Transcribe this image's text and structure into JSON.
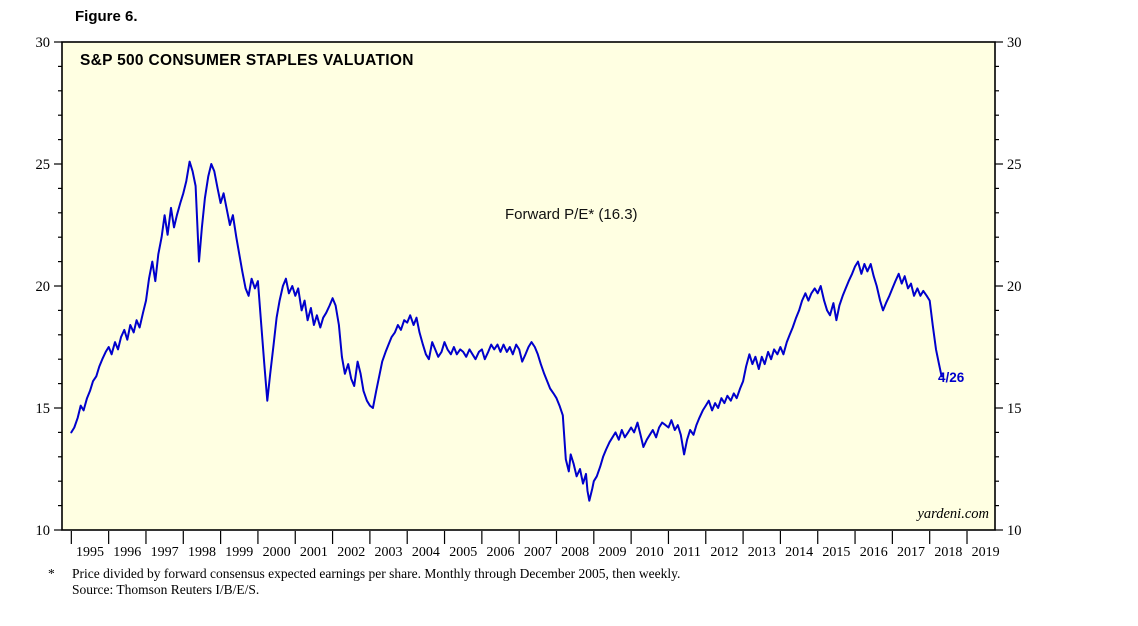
{
  "figure_label": "Figure 6.",
  "chart": {
    "title": "S&P 500 CONSUMER STAPLES VALUATION",
    "annotation": "Forward P/E* (16.3)",
    "end_label": "4/26",
    "watermark": "yardeni.com",
    "colors": {
      "line": "#0000CC",
      "plot_background": "#FFFFE2",
      "frame": "#000000",
      "end_label_blue": "#0000CC"
    }
  },
  "footnote": {
    "asterisk": "*",
    "line1": "Price divided by forward consensus expected earnings per share. Monthly through December 2005, then weekly.",
    "line2": "Source: Thomson Reuters I/B/E/S."
  },
  "chart_data": {
    "type": "line",
    "title": "S&P 500 CONSUMER STAPLES VALUATION",
    "series_name": "Forward P/E",
    "latest_value": 16.3,
    "latest_date_label": "4/26",
    "x_range": [
      1994.75,
      2019.75
    ],
    "y_range": [
      10,
      30
    ],
    "y_ticks": [
      10,
      15,
      20,
      25,
      30
    ],
    "y_minor_step": 1,
    "x_tick_years": [
      1995,
      1996,
      1997,
      1998,
      1999,
      2000,
      2001,
      2002,
      2003,
      2004,
      2005,
      2006,
      2007,
      2008,
      2009,
      2010,
      2011,
      2012,
      2013,
      2014,
      2015,
      2016,
      2017,
      2018,
      2019
    ],
    "grid": false,
    "legend": "none",
    "points": [
      [
        1995.0,
        14.0
      ],
      [
        1995.08,
        14.2
      ],
      [
        1995.17,
        14.6
      ],
      [
        1995.25,
        15.1
      ],
      [
        1995.33,
        14.9
      ],
      [
        1995.42,
        15.4
      ],
      [
        1995.5,
        15.7
      ],
      [
        1995.58,
        16.1
      ],
      [
        1995.67,
        16.3
      ],
      [
        1995.75,
        16.7
      ],
      [
        1995.83,
        17.0
      ],
      [
        1995.92,
        17.3
      ],
      [
        1996.0,
        17.5
      ],
      [
        1996.08,
        17.2
      ],
      [
        1996.17,
        17.7
      ],
      [
        1996.25,
        17.4
      ],
      [
        1996.33,
        17.9
      ],
      [
        1996.42,
        18.2
      ],
      [
        1996.5,
        17.8
      ],
      [
        1996.58,
        18.4
      ],
      [
        1996.67,
        18.1
      ],
      [
        1996.75,
        18.6
      ],
      [
        1996.83,
        18.3
      ],
      [
        1996.92,
        18.9
      ],
      [
        1997.0,
        19.4
      ],
      [
        1997.08,
        20.3
      ],
      [
        1997.17,
        21.0
      ],
      [
        1997.25,
        20.2
      ],
      [
        1997.33,
        21.3
      ],
      [
        1997.42,
        22.0
      ],
      [
        1997.5,
        22.9
      ],
      [
        1997.58,
        22.1
      ],
      [
        1997.67,
        23.2
      ],
      [
        1997.75,
        22.4
      ],
      [
        1997.83,
        22.9
      ],
      [
        1997.92,
        23.4
      ],
      [
        1998.0,
        23.8
      ],
      [
        1998.08,
        24.3
      ],
      [
        1998.17,
        25.1
      ],
      [
        1998.25,
        24.7
      ],
      [
        1998.33,
        24.1
      ],
      [
        1998.42,
        21.0
      ],
      [
        1998.5,
        22.4
      ],
      [
        1998.58,
        23.6
      ],
      [
        1998.67,
        24.5
      ],
      [
        1998.75,
        25.0
      ],
      [
        1998.83,
        24.7
      ],
      [
        1998.92,
        24.0
      ],
      [
        1999.0,
        23.4
      ],
      [
        1999.08,
        23.8
      ],
      [
        1999.17,
        23.1
      ],
      [
        1999.25,
        22.5
      ],
      [
        1999.33,
        22.9
      ],
      [
        1999.42,
        22.0
      ],
      [
        1999.5,
        21.3
      ],
      [
        1999.58,
        20.6
      ],
      [
        1999.67,
        19.9
      ],
      [
        1999.75,
        19.6
      ],
      [
        1999.83,
        20.3
      ],
      [
        1999.92,
        19.9
      ],
      [
        2000.0,
        20.2
      ],
      [
        2000.08,
        18.6
      ],
      [
        2000.17,
        16.8
      ],
      [
        2000.25,
        15.3
      ],
      [
        2000.33,
        16.4
      ],
      [
        2000.42,
        17.6
      ],
      [
        2000.5,
        18.7
      ],
      [
        2000.58,
        19.4
      ],
      [
        2000.67,
        20.0
      ],
      [
        2000.75,
        20.3
      ],
      [
        2000.83,
        19.7
      ],
      [
        2000.92,
        20.0
      ],
      [
        2001.0,
        19.6
      ],
      [
        2001.08,
        19.9
      ],
      [
        2001.17,
        19.0
      ],
      [
        2001.25,
        19.4
      ],
      [
        2001.33,
        18.6
      ],
      [
        2001.42,
        19.1
      ],
      [
        2001.5,
        18.4
      ],
      [
        2001.58,
        18.8
      ],
      [
        2001.67,
        18.3
      ],
      [
        2001.75,
        18.7
      ],
      [
        2001.83,
        18.9
      ],
      [
        2001.92,
        19.2
      ],
      [
        2002.0,
        19.5
      ],
      [
        2002.08,
        19.2
      ],
      [
        2002.17,
        18.4
      ],
      [
        2002.25,
        17.1
      ],
      [
        2002.33,
        16.4
      ],
      [
        2002.42,
        16.8
      ],
      [
        2002.5,
        16.2
      ],
      [
        2002.58,
        15.9
      ],
      [
        2002.67,
        16.9
      ],
      [
        2002.75,
        16.4
      ],
      [
        2002.83,
        15.7
      ],
      [
        2002.92,
        15.3
      ],
      [
        2003.0,
        15.1
      ],
      [
        2003.08,
        15.0
      ],
      [
        2003.17,
        15.7
      ],
      [
        2003.25,
        16.3
      ],
      [
        2003.33,
        16.9
      ],
      [
        2003.42,
        17.3
      ],
      [
        2003.5,
        17.6
      ],
      [
        2003.58,
        17.9
      ],
      [
        2003.67,
        18.1
      ],
      [
        2003.75,
        18.4
      ],
      [
        2003.83,
        18.2
      ],
      [
        2003.92,
        18.6
      ],
      [
        2004.0,
        18.5
      ],
      [
        2004.08,
        18.8
      ],
      [
        2004.17,
        18.4
      ],
      [
        2004.25,
        18.7
      ],
      [
        2004.33,
        18.1
      ],
      [
        2004.42,
        17.6
      ],
      [
        2004.5,
        17.2
      ],
      [
        2004.58,
        17.0
      ],
      [
        2004.67,
        17.7
      ],
      [
        2004.75,
        17.4
      ],
      [
        2004.83,
        17.1
      ],
      [
        2004.92,
        17.3
      ],
      [
        2005.0,
        17.7
      ],
      [
        2005.08,
        17.4
      ],
      [
        2005.17,
        17.2
      ],
      [
        2005.25,
        17.5
      ],
      [
        2005.33,
        17.2
      ],
      [
        2005.42,
        17.4
      ],
      [
        2005.5,
        17.3
      ],
      [
        2005.58,
        17.1
      ],
      [
        2005.67,
        17.4
      ],
      [
        2005.75,
        17.2
      ],
      [
        2005.83,
        17.0
      ],
      [
        2005.92,
        17.3
      ],
      [
        2006.0,
        17.4
      ],
      [
        2006.08,
        17.0
      ],
      [
        2006.17,
        17.3
      ],
      [
        2006.25,
        17.6
      ],
      [
        2006.33,
        17.4
      ],
      [
        2006.42,
        17.6
      ],
      [
        2006.5,
        17.3
      ],
      [
        2006.58,
        17.6
      ],
      [
        2006.67,
        17.3
      ],
      [
        2006.75,
        17.5
      ],
      [
        2006.83,
        17.2
      ],
      [
        2006.92,
        17.6
      ],
      [
        2007.0,
        17.4
      ],
      [
        2007.08,
        16.9
      ],
      [
        2007.17,
        17.2
      ],
      [
        2007.25,
        17.5
      ],
      [
        2007.33,
        17.7
      ],
      [
        2007.42,
        17.5
      ],
      [
        2007.5,
        17.2
      ],
      [
        2007.58,
        16.8
      ],
      [
        2007.67,
        16.4
      ],
      [
        2007.75,
        16.1
      ],
      [
        2007.83,
        15.8
      ],
      [
        2007.92,
        15.6
      ],
      [
        2008.0,
        15.4
      ],
      [
        2008.08,
        15.1
      ],
      [
        2008.17,
        14.7
      ],
      [
        2008.25,
        12.9
      ],
      [
        2008.33,
        12.4
      ],
      [
        2008.38,
        13.1
      ],
      [
        2008.46,
        12.7
      ],
      [
        2008.54,
        12.2
      ],
      [
        2008.63,
        12.5
      ],
      [
        2008.71,
        11.9
      ],
      [
        2008.79,
        12.3
      ],
      [
        2008.83,
        11.6
      ],
      [
        2008.88,
        11.2
      ],
      [
        2008.96,
        11.7
      ],
      [
        2009.0,
        12.0
      ],
      [
        2009.08,
        12.2
      ],
      [
        2009.17,
        12.6
      ],
      [
        2009.25,
        13.0
      ],
      [
        2009.33,
        13.3
      ],
      [
        2009.42,
        13.6
      ],
      [
        2009.5,
        13.8
      ],
      [
        2009.58,
        14.0
      ],
      [
        2009.67,
        13.7
      ],
      [
        2009.75,
        14.1
      ],
      [
        2009.83,
        13.8
      ],
      [
        2009.92,
        14.0
      ],
      [
        2010.0,
        14.2
      ],
      [
        2010.08,
        14.0
      ],
      [
        2010.17,
        14.4
      ],
      [
        2010.25,
        13.9
      ],
      [
        2010.33,
        13.4
      ],
      [
        2010.42,
        13.7
      ],
      [
        2010.5,
        13.9
      ],
      [
        2010.58,
        14.1
      ],
      [
        2010.67,
        13.8
      ],
      [
        2010.75,
        14.2
      ],
      [
        2010.83,
        14.4
      ],
      [
        2010.92,
        14.3
      ],
      [
        2011.0,
        14.2
      ],
      [
        2011.08,
        14.5
      ],
      [
        2011.17,
        14.1
      ],
      [
        2011.25,
        14.3
      ],
      [
        2011.33,
        13.9
      ],
      [
        2011.42,
        13.1
      ],
      [
        2011.5,
        13.7
      ],
      [
        2011.58,
        14.1
      ],
      [
        2011.67,
        13.9
      ],
      [
        2011.75,
        14.3
      ],
      [
        2011.83,
        14.6
      ],
      [
        2011.92,
        14.9
      ],
      [
        2012.0,
        15.1
      ],
      [
        2012.08,
        15.3
      ],
      [
        2012.17,
        14.9
      ],
      [
        2012.25,
        15.2
      ],
      [
        2012.33,
        15.0
      ],
      [
        2012.42,
        15.4
      ],
      [
        2012.5,
        15.2
      ],
      [
        2012.58,
        15.5
      ],
      [
        2012.67,
        15.3
      ],
      [
        2012.75,
        15.6
      ],
      [
        2012.83,
        15.4
      ],
      [
        2012.92,
        15.8
      ],
      [
        2013.0,
        16.1
      ],
      [
        2013.08,
        16.7
      ],
      [
        2013.17,
        17.2
      ],
      [
        2013.25,
        16.8
      ],
      [
        2013.33,
        17.1
      ],
      [
        2013.42,
        16.6
      ],
      [
        2013.5,
        17.1
      ],
      [
        2013.58,
        16.8
      ],
      [
        2013.67,
        17.3
      ],
      [
        2013.75,
        17.0
      ],
      [
        2013.83,
        17.4
      ],
      [
        2013.92,
        17.2
      ],
      [
        2014.0,
        17.5
      ],
      [
        2014.08,
        17.2
      ],
      [
        2014.17,
        17.7
      ],
      [
        2014.25,
        18.0
      ],
      [
        2014.33,
        18.3
      ],
      [
        2014.42,
        18.7
      ],
      [
        2014.5,
        19.0
      ],
      [
        2014.58,
        19.4
      ],
      [
        2014.67,
        19.7
      ],
      [
        2014.75,
        19.4
      ],
      [
        2014.83,
        19.7
      ],
      [
        2014.92,
        19.9
      ],
      [
        2015.0,
        19.7
      ],
      [
        2015.08,
        20.0
      ],
      [
        2015.17,
        19.4
      ],
      [
        2015.25,
        19.0
      ],
      [
        2015.33,
        18.8
      ],
      [
        2015.42,
        19.3
      ],
      [
        2015.5,
        18.6
      ],
      [
        2015.58,
        19.2
      ],
      [
        2015.67,
        19.6
      ],
      [
        2015.75,
        19.9
      ],
      [
        2015.83,
        20.2
      ],
      [
        2015.92,
        20.5
      ],
      [
        2016.0,
        20.8
      ],
      [
        2016.08,
        21.0
      ],
      [
        2016.17,
        20.5
      ],
      [
        2016.25,
        20.9
      ],
      [
        2016.33,
        20.6
      ],
      [
        2016.42,
        20.9
      ],
      [
        2016.5,
        20.4
      ],
      [
        2016.58,
        20.0
      ],
      [
        2016.67,
        19.4
      ],
      [
        2016.75,
        19.0
      ],
      [
        2016.83,
        19.3
      ],
      [
        2016.92,
        19.6
      ],
      [
        2017.0,
        19.9
      ],
      [
        2017.08,
        20.2
      ],
      [
        2017.17,
        20.5
      ],
      [
        2017.25,
        20.1
      ],
      [
        2017.33,
        20.4
      ],
      [
        2017.42,
        19.9
      ],
      [
        2017.5,
        20.1
      ],
      [
        2017.58,
        19.6
      ],
      [
        2017.67,
        19.9
      ],
      [
        2017.75,
        19.6
      ],
      [
        2017.83,
        19.8
      ],
      [
        2017.92,
        19.6
      ],
      [
        2018.0,
        19.4
      ],
      [
        2018.08,
        18.4
      ],
      [
        2018.17,
        17.4
      ],
      [
        2018.25,
        16.8
      ],
      [
        2018.32,
        16.3
      ]
    ]
  }
}
